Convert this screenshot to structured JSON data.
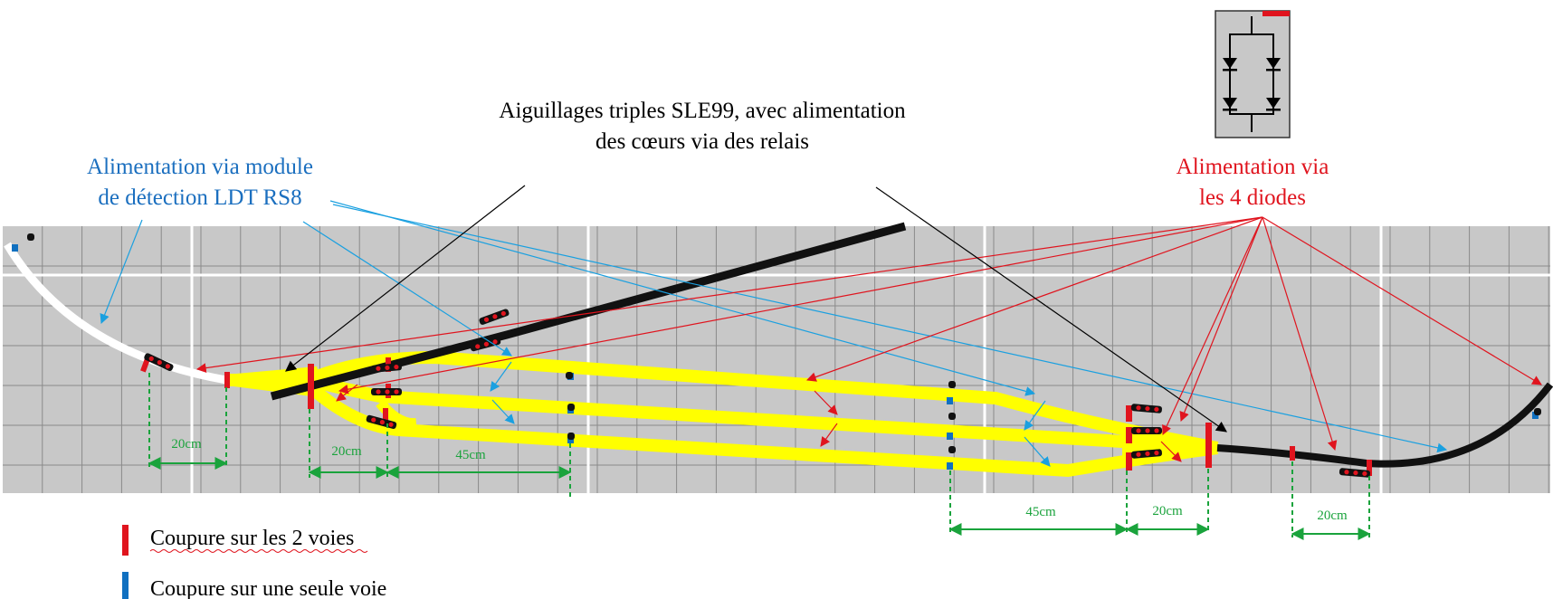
{
  "labels": {
    "turnouts": [
      "Aiguillages triples SLE99, avec alimentation",
      "des cœurs via des relais"
    ],
    "ldt": [
      "Alimentation via module",
      "de détection LDT RS8"
    ],
    "diodes": [
      "Alimentation via",
      "les 4 diodes"
    ]
  },
  "dimensions": {
    "d1": "20cm",
    "d2": "20cm",
    "d3": "45cm",
    "d4": "45cm",
    "d5": "20cm",
    "d6": "20cm"
  },
  "legend": [
    {
      "text": "Coupure sur les 2 voies",
      "color": "#e0141e"
    },
    {
      "text": "Coupure sur une seule voie",
      "color": "#1070c0"
    }
  ],
  "colors": {
    "grid_bg": "#c8c8c8",
    "track_yellow": "#ffff00",
    "track_black": "#111111",
    "dim_green": "#1aa33c",
    "blue_text": "#1b6fbf",
    "red_text": "#e0141e",
    "arrow_blue": "#1aa0e0",
    "arrow_red": "#e0141e"
  },
  "icons": [
    "diode-bridge-icon",
    "signal-icon"
  ]
}
